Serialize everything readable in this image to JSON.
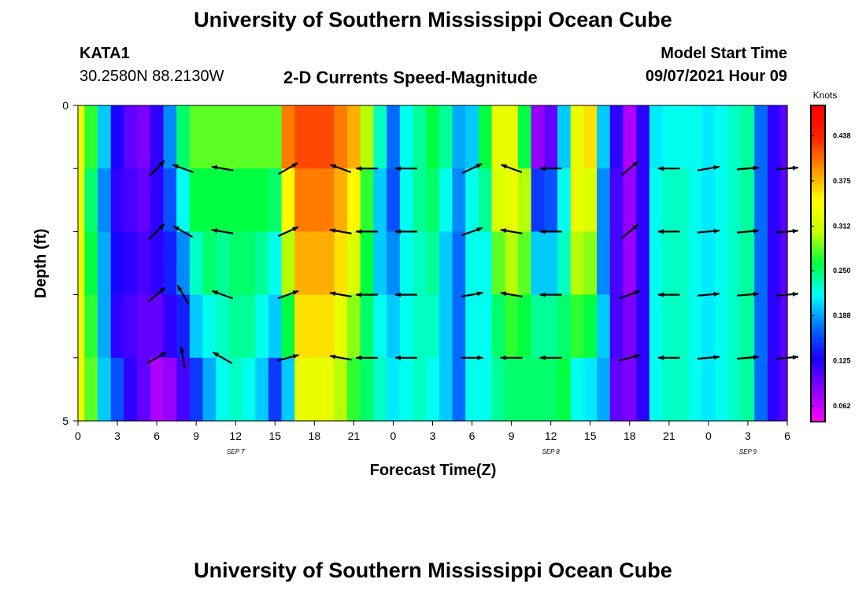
{
  "header": {
    "title": "University of Southern Mississippi Ocean Cube",
    "station": "KATA1",
    "coordinates": "30.2580N  88.2130W",
    "subtitle": "2-D Currents Speed-Magnitude",
    "model_start_label": "Model Start Time",
    "model_start_value": "09/07/2021 Hour 09"
  },
  "footer": {
    "title": "University of Southern Mississippi Ocean Cube"
  },
  "chart_data": {
    "type": "heatmap",
    "title": "2-D Currents Speed-Magnitude",
    "xlabel": "Forecast Time(Z)",
    "ylabel": "Depth (ft)",
    "x_tick_labels": [
      "0",
      "3",
      "6",
      "9",
      "12",
      "15",
      "18",
      "21",
      "0",
      "3",
      "6",
      "9",
      "12",
      "15",
      "18",
      "21",
      "0",
      "3",
      "6"
    ],
    "x_day_labels": [
      {
        "label": "SEP 7",
        "tick_index": 4
      },
      {
        "label": "SEP 8",
        "tick_index": 12
      },
      {
        "label": "SEP 9",
        "tick_index": 17
      }
    ],
    "y_tick_labels": [
      "0",
      "5"
    ],
    "ylim": [
      5,
      0
    ],
    "x_hours": [
      0,
      1,
      2,
      3,
      4,
      5,
      6,
      7,
      8,
      9,
      10,
      11,
      12,
      13,
      14,
      15,
      16,
      17,
      18,
      19,
      20,
      21,
      22,
      23,
      24,
      25,
      26,
      27,
      28,
      29,
      30,
      31,
      32,
      33,
      34,
      35,
      36,
      37,
      38,
      39,
      40,
      41,
      42,
      43,
      44,
      45,
      46,
      47,
      48,
      49,
      50,
      51,
      52,
      53,
      54
    ],
    "depths": [
      0,
      1,
      2,
      3,
      4,
      5
    ],
    "speed_knots_by_time": [
      [
        0.33,
        0.33,
        0.33,
        0.33,
        0.33
      ],
      [
        0.27,
        0.25,
        0.26,
        0.27,
        0.28
      ],
      [
        0.2,
        0.18,
        0.19,
        0.19,
        0.2
      ],
      [
        0.13,
        0.12,
        0.13,
        0.12,
        0.16
      ],
      [
        0.1,
        0.11,
        0.12,
        0.11,
        0.12
      ],
      [
        0.09,
        0.1,
        0.11,
        0.1,
        0.1
      ],
      [
        0.12,
        0.12,
        0.12,
        0.1,
        0.07
      ],
      [
        0.18,
        0.16,
        0.14,
        0.12,
        0.08
      ],
      [
        0.25,
        0.22,
        0.18,
        0.14,
        0.11
      ],
      [
        0.28,
        0.26,
        0.23,
        0.2,
        0.15
      ],
      [
        0.28,
        0.26,
        0.25,
        0.22,
        0.19
      ],
      [
        0.28,
        0.26,
        0.24,
        0.23,
        0.22
      ],
      [
        0.28,
        0.26,
        0.25,
        0.24,
        0.23
      ],
      [
        0.28,
        0.26,
        0.25,
        0.24,
        0.22
      ],
      [
        0.28,
        0.26,
        0.24,
        0.22,
        0.2
      ],
      [
        0.28,
        0.25,
        0.22,
        0.2,
        0.15
      ],
      [
        0.4,
        0.35,
        0.3,
        0.26,
        0.2
      ],
      [
        0.42,
        0.4,
        0.38,
        0.36,
        0.33
      ],
      [
        0.42,
        0.4,
        0.38,
        0.36,
        0.33
      ],
      [
        0.42,
        0.4,
        0.38,
        0.36,
        0.33
      ],
      [
        0.4,
        0.38,
        0.36,
        0.33,
        0.3
      ],
      [
        0.38,
        0.35,
        0.32,
        0.29,
        0.27
      ],
      [
        0.3,
        0.27,
        0.26,
        0.25,
        0.25
      ],
      [
        0.23,
        0.2,
        0.2,
        0.22,
        0.23
      ],
      [
        0.17,
        0.16,
        0.18,
        0.2,
        0.21
      ],
      [
        0.22,
        0.22,
        0.22,
        0.22,
        0.22
      ],
      [
        0.24,
        0.24,
        0.23,
        0.23,
        0.23
      ],
      [
        0.26,
        0.25,
        0.24,
        0.23,
        0.22
      ],
      [
        0.24,
        0.22,
        0.2,
        0.2,
        0.2
      ],
      [
        0.19,
        0.18,
        0.17,
        0.17,
        0.17
      ],
      [
        0.2,
        0.22,
        0.22,
        0.22,
        0.22
      ],
      [
        0.26,
        0.24,
        0.22,
        0.22,
        0.22
      ],
      [
        0.33,
        0.32,
        0.28,
        0.25,
        0.24
      ],
      [
        0.33,
        0.33,
        0.3,
        0.27,
        0.25
      ],
      [
        0.26,
        0.3,
        0.28,
        0.26,
        0.25
      ],
      [
        0.08,
        0.15,
        0.2,
        0.24,
        0.25
      ],
      [
        0.1,
        0.16,
        0.2,
        0.24,
        0.25
      ],
      [
        0.2,
        0.22,
        0.23,
        0.25,
        0.26
      ],
      [
        0.33,
        0.33,
        0.3,
        0.27,
        0.22
      ],
      [
        0.36,
        0.32,
        0.29,
        0.26,
        0.21
      ],
      [
        0.2,
        0.18,
        0.18,
        0.2,
        0.19
      ],
      [
        0.12,
        0.11,
        0.11,
        0.11,
        0.1
      ],
      [
        0.07,
        0.08,
        0.08,
        0.09,
        0.09
      ],
      [
        0.12,
        0.12,
        0.12,
        0.12,
        0.12
      ],
      [
        0.21,
        0.22,
        0.22,
        0.22,
        0.22
      ],
      [
        0.22,
        0.23,
        0.23,
        0.23,
        0.23
      ],
      [
        0.22,
        0.23,
        0.23,
        0.23,
        0.23
      ],
      [
        0.22,
        0.22,
        0.22,
        0.22,
        0.22
      ],
      [
        0.21,
        0.21,
        0.21,
        0.21,
        0.21
      ],
      [
        0.22,
        0.22,
        0.22,
        0.22,
        0.22
      ],
      [
        0.23,
        0.23,
        0.23,
        0.23,
        0.23
      ],
      [
        0.24,
        0.24,
        0.24,
        0.24,
        0.24
      ],
      [
        0.17,
        0.17,
        0.17,
        0.17,
        0.17
      ],
      [
        0.12,
        0.12,
        0.12,
        0.12,
        0.12
      ],
      [
        0.1,
        0.1,
        0.1,
        0.1,
        0.1
      ]
    ],
    "vectors": [
      {
        "t": 6,
        "d": 1,
        "dir_deg": 45
      },
      {
        "t": 8,
        "d": 1,
        "dir_deg": 160
      },
      {
        "t": 11,
        "d": 1,
        "dir_deg": 170
      },
      {
        "t": 16,
        "d": 1,
        "dir_deg": 30
      },
      {
        "t": 20,
        "d": 1,
        "dir_deg": 160
      },
      {
        "t": 22,
        "d": 1,
        "dir_deg": 180
      },
      {
        "t": 25,
        "d": 1,
        "dir_deg": 180
      },
      {
        "t": 30,
        "d": 1,
        "dir_deg": 25
      },
      {
        "t": 33,
        "d": 1,
        "dir_deg": 160
      },
      {
        "t": 36,
        "d": 1,
        "dir_deg": 180
      },
      {
        "t": 42,
        "d": 1,
        "dir_deg": 40
      },
      {
        "t": 45,
        "d": 1,
        "dir_deg": 180
      },
      {
        "t": 48,
        "d": 1,
        "dir_deg": 10
      },
      {
        "t": 51,
        "d": 1,
        "dir_deg": 5
      },
      {
        "t": 54,
        "d": 1,
        "dir_deg": 5
      },
      {
        "t": 6,
        "d": 2,
        "dir_deg": 45
      },
      {
        "t": 8,
        "d": 2,
        "dir_deg": 150
      },
      {
        "t": 11,
        "d": 2,
        "dir_deg": 170
      },
      {
        "t": 16,
        "d": 2,
        "dir_deg": 25
      },
      {
        "t": 20,
        "d": 2,
        "dir_deg": 170
      },
      {
        "t": 22,
        "d": 2,
        "dir_deg": 180
      },
      {
        "t": 25,
        "d": 2,
        "dir_deg": 180
      },
      {
        "t": 30,
        "d": 2,
        "dir_deg": 20
      },
      {
        "t": 33,
        "d": 2,
        "dir_deg": 170
      },
      {
        "t": 36,
        "d": 2,
        "dir_deg": 180
      },
      {
        "t": 42,
        "d": 2,
        "dir_deg": 40
      },
      {
        "t": 45,
        "d": 2,
        "dir_deg": 180
      },
      {
        "t": 48,
        "d": 2,
        "dir_deg": 5
      },
      {
        "t": 51,
        "d": 2,
        "dir_deg": 5
      },
      {
        "t": 54,
        "d": 2,
        "dir_deg": 5
      },
      {
        "t": 6,
        "d": 3,
        "dir_deg": 40
      },
      {
        "t": 8,
        "d": 3,
        "dir_deg": 120
      },
      {
        "t": 11,
        "d": 3,
        "dir_deg": 160
      },
      {
        "t": 16,
        "d": 3,
        "dir_deg": 20
      },
      {
        "t": 20,
        "d": 3,
        "dir_deg": 170
      },
      {
        "t": 22,
        "d": 3,
        "dir_deg": 180
      },
      {
        "t": 25,
        "d": 3,
        "dir_deg": 180
      },
      {
        "t": 30,
        "d": 3,
        "dir_deg": 10
      },
      {
        "t": 33,
        "d": 3,
        "dir_deg": 170
      },
      {
        "t": 36,
        "d": 3,
        "dir_deg": 180
      },
      {
        "t": 42,
        "d": 3,
        "dir_deg": 20
      },
      {
        "t": 45,
        "d": 3,
        "dir_deg": 180
      },
      {
        "t": 48,
        "d": 3,
        "dir_deg": 5
      },
      {
        "t": 51,
        "d": 3,
        "dir_deg": 5
      },
      {
        "t": 54,
        "d": 3,
        "dir_deg": 5
      },
      {
        "t": 6,
        "d": 4,
        "dir_deg": 30
      },
      {
        "t": 8,
        "d": 4,
        "dir_deg": 100
      },
      {
        "t": 11,
        "d": 4,
        "dir_deg": 150
      },
      {
        "t": 16,
        "d": 4,
        "dir_deg": 15
      },
      {
        "t": 20,
        "d": 4,
        "dir_deg": 170
      },
      {
        "t": 22,
        "d": 4,
        "dir_deg": 180
      },
      {
        "t": 25,
        "d": 4,
        "dir_deg": 180
      },
      {
        "t": 30,
        "d": 4,
        "dir_deg": 0
      },
      {
        "t": 33,
        "d": 4,
        "dir_deg": 180
      },
      {
        "t": 36,
        "d": 4,
        "dir_deg": 180
      },
      {
        "t": 42,
        "d": 4,
        "dir_deg": 15
      },
      {
        "t": 45,
        "d": 4,
        "dir_deg": 180
      },
      {
        "t": 48,
        "d": 4,
        "dir_deg": 5
      },
      {
        "t": 51,
        "d": 4,
        "dir_deg": 5
      },
      {
        "t": 54,
        "d": 4,
        "dir_deg": 5
      }
    ],
    "colorbar": {
      "unit": "Knots",
      "min": 0.04,
      "max": 0.48,
      "tick_labels": [
        "0.438",
        "0.375",
        "0.312",
        "0.250",
        "0.188",
        "0.125",
        "0.062"
      ],
      "tick_values": [
        0.438,
        0.375,
        0.312,
        0.25,
        0.188,
        0.125,
        0.062
      ],
      "palette": [
        "#ff00ff",
        "#8a00ff",
        "#1a00ff",
        "#0070ff",
        "#00ffff",
        "#00ff40",
        "#c8ff00",
        "#ffff00",
        "#ff9000",
        "#ff2000",
        "#ff0000"
      ]
    }
  }
}
